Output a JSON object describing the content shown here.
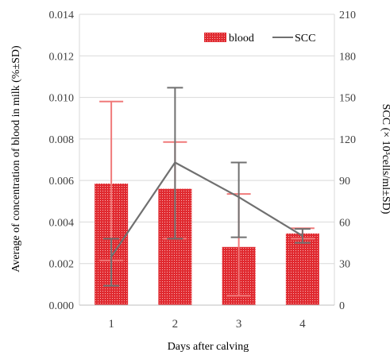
{
  "chart_data": {
    "type": "bar+line",
    "categories": [
      "1",
      "2",
      "3",
      "4"
    ],
    "xlabel": "Days after calving",
    "ylabel_left": "Average of concentration of blood in milk (%±SD)",
    "ylabel_right": "SCC (× 10³cells/ml±SD)",
    "left_axis": {
      "min": 0,
      "max": 0.014,
      "step": 0.002,
      "tick_labels": [
        "0.000",
        "0.002",
        "0.004",
        "0.006",
        "0.008",
        "0.010",
        "0.012",
        "0.014"
      ]
    },
    "right_axis": {
      "min": 0,
      "max": 210,
      "step": 30,
      "tick_labels": [
        "0",
        "30",
        "60",
        "90",
        "120",
        "150",
        "180",
        "210"
      ]
    },
    "grid": true,
    "legend_position": "top-right",
    "series": [
      {
        "name": "blood",
        "kind": "bar",
        "axis": "left",
        "color": "#e8282e",
        "error_color": "#f07a7a",
        "values": [
          0.00585,
          0.0056,
          0.0028,
          0.00345
        ],
        "error_upper": [
          0.0098,
          0.00785,
          0.00535,
          0.0037
        ],
        "error_lower": [
          0.00215,
          0.0032,
          0.00045,
          0.0032
        ]
      },
      {
        "name": "SCC",
        "kind": "line",
        "axis": "right",
        "color": "#707070",
        "values": [
          35,
          103,
          78,
          50
        ],
        "error_upper": [
          48,
          157,
          103,
          55
        ],
        "error_lower": [
          14,
          48,
          49,
          45
        ]
      }
    ]
  }
}
